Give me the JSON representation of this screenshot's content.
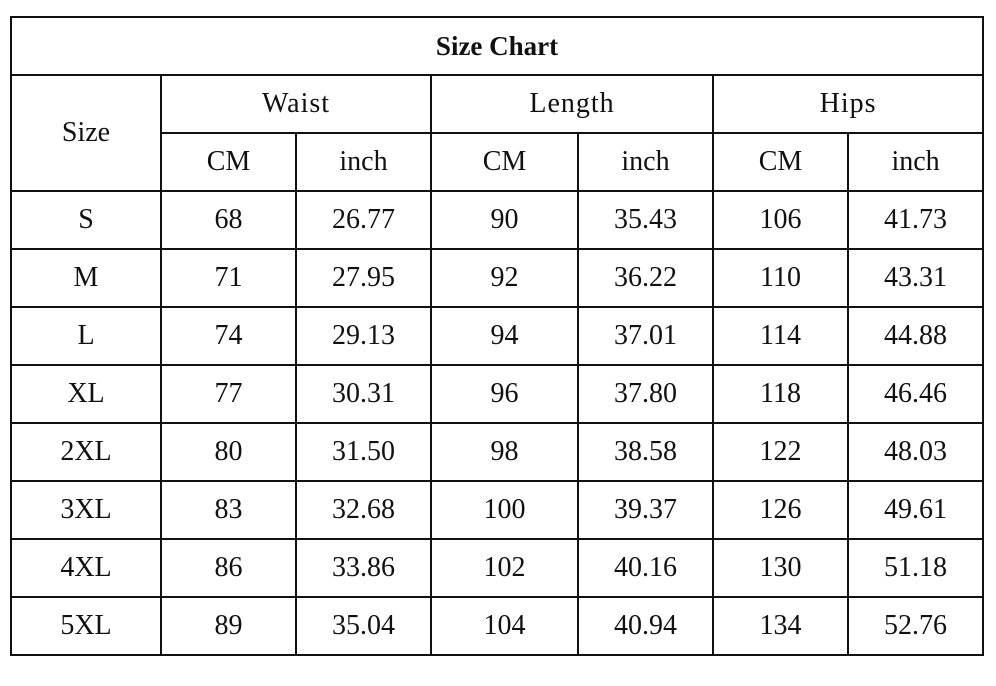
{
  "table": {
    "title": "Size Chart",
    "header": {
      "size": "Size",
      "groups": [
        "Waist",
        "Length",
        "Hips"
      ],
      "units": [
        "CM",
        "inch",
        "CM",
        "inch",
        "CM",
        "inch"
      ]
    },
    "rows": [
      [
        "S",
        "68",
        "26.77",
        "90",
        "35.43",
        "106",
        "41.73"
      ],
      [
        "M",
        "71",
        "27.95",
        "92",
        "36.22",
        "110",
        "43.31"
      ],
      [
        "L",
        "74",
        "29.13",
        "94",
        "37.01",
        "114",
        "44.88"
      ],
      [
        "XL",
        "77",
        "30.31",
        "96",
        "37.80",
        "118",
        "46.46"
      ],
      [
        "2XL",
        "80",
        "31.50",
        "98",
        "38.58",
        "122",
        "48.03"
      ],
      [
        "3XL",
        "83",
        "32.68",
        "100",
        "39.37",
        "126",
        "49.61"
      ],
      [
        "4XL",
        "86",
        "33.86",
        "102",
        "40.16",
        "130",
        "51.18"
      ],
      [
        "5XL",
        "89",
        "35.04",
        "104",
        "40.94",
        "134",
        "52.76"
      ]
    ]
  }
}
